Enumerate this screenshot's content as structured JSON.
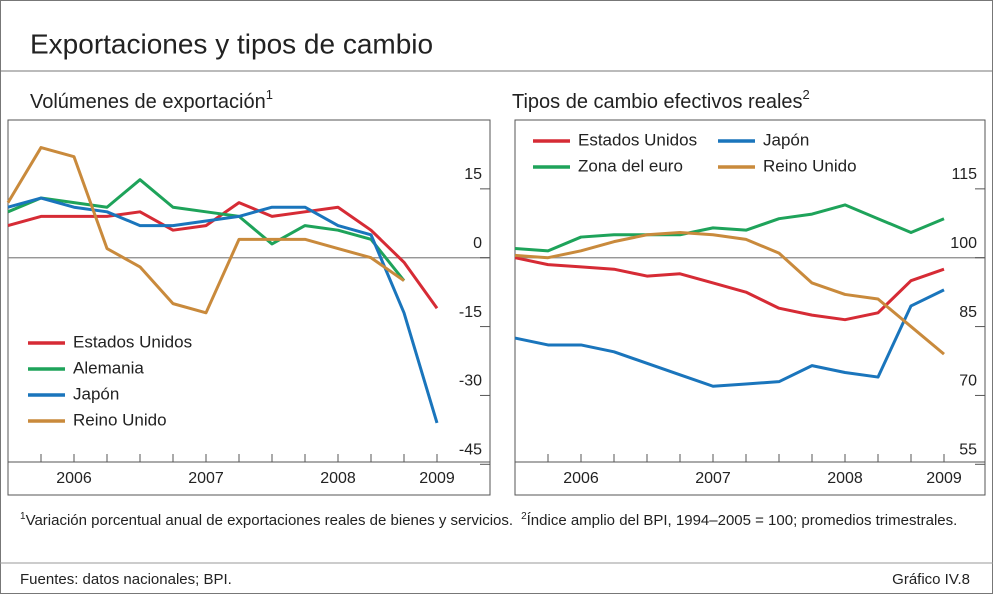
{
  "header": {
    "title": "Exportaciones y tipos de cambio"
  },
  "chart_data": [
    {
      "type": "line",
      "title": "Volúmenes de exportación",
      "title_note": "1",
      "categories": [
        null,
        null,
        "2006",
        null,
        null,
        null,
        "2007",
        null,
        null,
        null,
        "2008",
        null,
        null,
        "2009"
      ],
      "ylim": [
        -44.5,
        30
      ],
      "yticks": [
        15,
        0,
        -15,
        -30,
        -45
      ],
      "baseline": 0,
      "legend": "bottom-left",
      "series": [
        {
          "name": "Estados Unidos",
          "color": "#d62b35",
          "values": [
            7,
            9,
            9,
            9,
            10,
            6,
            7,
            12,
            9,
            10,
            11,
            6,
            -1,
            -11
          ]
        },
        {
          "name": "Alemania",
          "color": "#1ea35a",
          "values": [
            10,
            13,
            12,
            11,
            17,
            11,
            10,
            9,
            3,
            7,
            6,
            4,
            -5,
            null
          ]
        },
        {
          "name": "Japón",
          "color": "#1a75bc",
          "values": [
            11,
            13,
            11,
            10,
            7,
            7,
            8,
            9,
            11,
            11,
            7,
            5,
            -12,
            -36
          ]
        },
        {
          "name": "Reino Unido",
          "color": "#c98a3c",
          "values": [
            12,
            24,
            22,
            2,
            -2,
            -10,
            -12,
            4,
            4,
            4,
            2,
            0,
            -5,
            null
          ]
        }
      ]
    },
    {
      "type": "line",
      "title": "Tipos de cambio efectivos reales",
      "title_note": "2",
      "categories": [
        null,
        null,
        "2006",
        null,
        null,
        null,
        "2007",
        null,
        null,
        null,
        "2008",
        null,
        null,
        "2009"
      ],
      "ylim": [
        55.5,
        130
      ],
      "yticks": [
        115,
        100,
        85,
        70,
        55
      ],
      "baseline": 100,
      "legend": "top-left",
      "series": [
        {
          "name": "Estados Unidos",
          "color": "#d62b35",
          "values": [
            100,
            98.5,
            98,
            97.5,
            96,
            96.5,
            94.5,
            92.5,
            89,
            87.5,
            86.5,
            88,
            95,
            97.5
          ]
        },
        {
          "name": "Japón",
          "color": "#1a75bc",
          "values": [
            82.5,
            81,
            81,
            79.5,
            77,
            74.5,
            72,
            72.5,
            73,
            76.5,
            75,
            74,
            89.5,
            93
          ]
        },
        {
          "name": "Zona del euro",
          "color": "#1ea35a",
          "values": [
            102,
            101.5,
            104.5,
            105,
            105,
            105,
            106.5,
            106,
            108.5,
            109.5,
            111.5,
            108.5,
            105.5,
            108.5
          ]
        },
        {
          "name": "Reino Unido",
          "color": "#c98a3c",
          "values": [
            100.5,
            100,
            101.5,
            103.5,
            105,
            105.5,
            105,
            104,
            101,
            94.5,
            92,
            91,
            85,
            79
          ]
        }
      ]
    }
  ],
  "footnotes": [
    {
      "marker": "1",
      "text": "Variación porcentual anual de exportaciones reales de bienes y servicios."
    },
    {
      "marker": "2",
      "text": "Índice amplio del BPI, 1994–2005 = 100; promedios trimestrales."
    }
  ],
  "sources": "Fuentes: datos nacionales; BPI.",
  "figure_id": "Gráfico IV.8"
}
